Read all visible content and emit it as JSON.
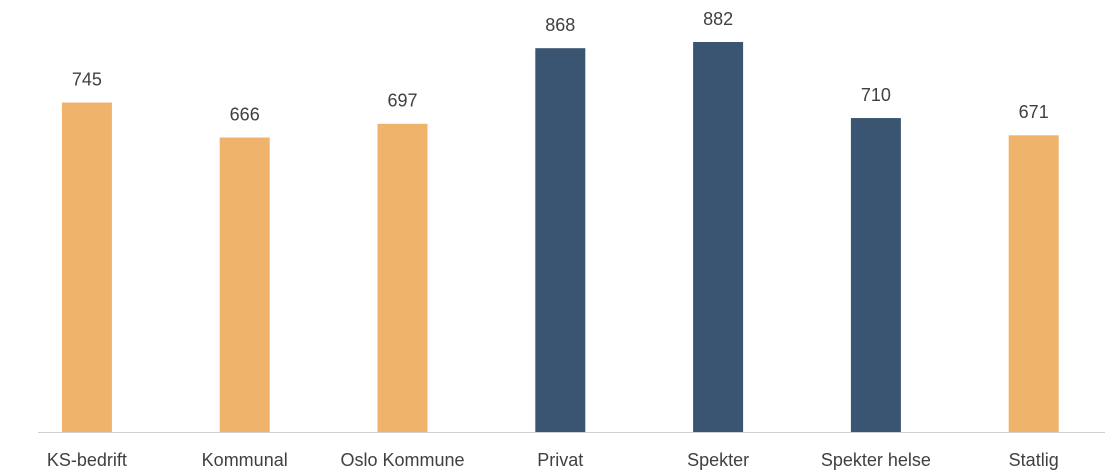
{
  "chart_data": {
    "type": "bar",
    "categories": [
      "KS-bedrift",
      "Kommunal",
      "Oslo Kommune",
      "Privat",
      "Spekter",
      "Spekter helse",
      "Statlig"
    ],
    "values": [
      745,
      666,
      697,
      868,
      882,
      710,
      671
    ],
    "colors": [
      "#f0b36b",
      "#f0b36b",
      "#f0b36b",
      "#3a5572",
      "#3a5572",
      "#3a5572",
      "#f0b36b"
    ]
  }
}
